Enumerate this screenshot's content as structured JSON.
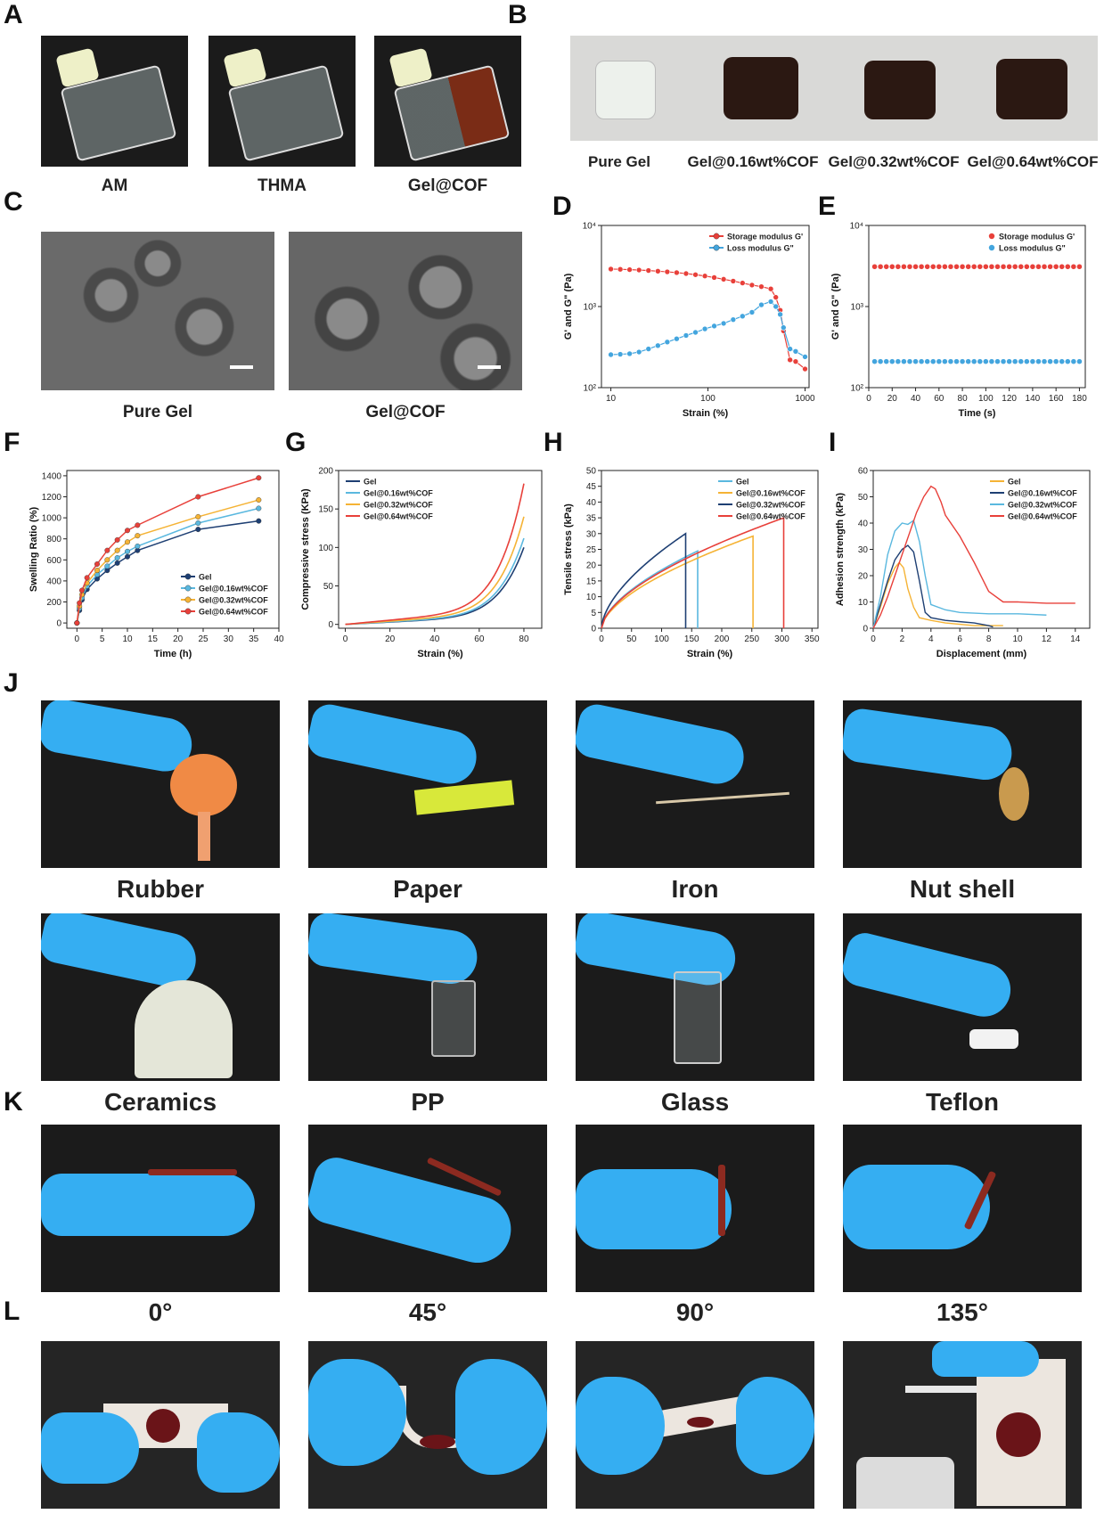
{
  "panels": {
    "A": {
      "label": "A",
      "captions": [
        "AM",
        "THMA",
        "Gel@COF"
      ]
    },
    "B": {
      "label": "B",
      "captions": [
        "Pure Gel",
        "Gel@0.16wt%COF",
        "Gel@0.32wt%COF",
        "Gel@0.64wt%COF"
      ]
    },
    "C": {
      "label": "C",
      "captions": [
        "Pure Gel",
        "Gel@COF"
      ]
    },
    "D": {
      "label": "D"
    },
    "E": {
      "label": "E"
    },
    "F": {
      "label": "F"
    },
    "G": {
      "label": "G"
    },
    "H": {
      "label": "H"
    },
    "I": {
      "label": "I"
    },
    "J": {
      "label": "J",
      "captions": [
        "Rubber",
        "Paper",
        "Iron",
        "Nut shell",
        "Ceramics",
        "PP",
        "Glass",
        "Teflon"
      ]
    },
    "K": {
      "label": "K",
      "captions": [
        "0°",
        "45°",
        "90°",
        "135°"
      ]
    },
    "L": {
      "label": "L"
    }
  },
  "colors": {
    "red": "#e8403a",
    "blue": "#43a5de",
    "yellow": "#f5b335",
    "navy": "#1e3f73",
    "cyan": "#5ab8df"
  },
  "chart_data": [
    {
      "id": "D",
      "type": "line",
      "xlabel": "Strain (%)",
      "ylabel": "G' and G\" (Pa)",
      "xscale": "log",
      "yscale": "log",
      "xlim": [
        8,
        1100
      ],
      "ylim": [
        100,
        10000
      ],
      "xticks": [
        "10",
        "100",
        "1000"
      ],
      "yticks": [
        "10²",
        "10³",
        "10⁴"
      ],
      "legend": "top-right",
      "series": [
        {
          "name": "Storage modulus G'",
          "color": "#e8403a",
          "x": [
            10,
            12.5,
            15.6,
            19.5,
            24.4,
            30.5,
            38.1,
            47.6,
            59.5,
            74.4,
            93,
            116,
            145,
            182,
            227,
            284,
            355,
            444,
            500,
            555,
            600,
            700,
            800,
            1000
          ],
          "y": [
            2900,
            2880,
            2850,
            2820,
            2780,
            2730,
            2680,
            2620,
            2550,
            2470,
            2380,
            2280,
            2170,
            2060,
            1950,
            1840,
            1760,
            1650,
            1300,
            900,
            500,
            220,
            210,
            170
          ]
        },
        {
          "name": "Loss modulus G\"",
          "color": "#43a5de",
          "x": [
            10,
            12.5,
            15.6,
            19.5,
            24.4,
            30.5,
            38.1,
            47.6,
            59.5,
            74.4,
            93,
            116,
            145,
            182,
            227,
            284,
            355,
            444,
            500,
            555,
            600,
            700,
            800,
            1000
          ],
          "y": [
            255,
            258,
            262,
            275,
            300,
            330,
            365,
            400,
            440,
            480,
            530,
            575,
            620,
            690,
            760,
            850,
            1050,
            1150,
            1000,
            800,
            550,
            300,
            280,
            240
          ]
        }
      ]
    },
    {
      "id": "E",
      "type": "scatter",
      "xlabel": "Time (s)",
      "ylabel": "G' and G\" (Pa)",
      "yscale": "log",
      "xlim": [
        0,
        185
      ],
      "ylim": [
        100,
        10000
      ],
      "xticks": [
        "0",
        "20",
        "40",
        "60",
        "80",
        "100",
        "120",
        "140",
        "160",
        "180"
      ],
      "yticks": [
        "10²",
        "10³",
        "10⁴"
      ],
      "legend": "top-right",
      "series": [
        {
          "name": "Storage modulus G'",
          "color": "#e8403a",
          "x_start": 5,
          "x_step": 5,
          "count": 36,
          "y": 3100
        },
        {
          "name": "Loss modulus G\"",
          "color": "#43a5de",
          "x_start": 5,
          "x_step": 5,
          "count": 36,
          "y": 210
        }
      ]
    },
    {
      "id": "F",
      "type": "line",
      "xlabel": "Time (h)",
      "ylabel": "Swelling Ratio (%)",
      "xlim": [
        -2,
        40
      ],
      "ylim": [
        -50,
        1450
      ],
      "xticks": [
        "0",
        "5",
        "10",
        "15",
        "20",
        "25",
        "30",
        "35",
        "40"
      ],
      "yticks": [
        "0",
        "200",
        "400",
        "600",
        "800",
        "1000",
        "1200",
        "1400"
      ],
      "legend": "bottom-right",
      "x": [
        0,
        0.5,
        1,
        2,
        4,
        6,
        8,
        10,
        12,
        24,
        36
      ],
      "series": [
        {
          "name": "Gel",
          "color": "#1e3f73",
          "y": [
            0,
            120,
            220,
            320,
            420,
            500,
            570,
            630,
            690,
            890,
            970
          ]
        },
        {
          "name": "Gel@0.16wt%COF",
          "color": "#5ab8df",
          "y": [
            0,
            140,
            240,
            350,
            460,
            540,
            620,
            680,
            730,
            950,
            1090
          ]
        },
        {
          "name": "Gel@0.32wt%COF",
          "color": "#f5b335",
          "y": [
            0,
            160,
            270,
            380,
            500,
            600,
            690,
            770,
            830,
            1010,
            1170
          ]
        },
        {
          "name": "Gel@0.64wt%COF",
          "color": "#e8403a",
          "y": [
            0,
            190,
            310,
            430,
            560,
            690,
            790,
            880,
            930,
            1200,
            1380
          ]
        }
      ]
    },
    {
      "id": "G",
      "type": "line",
      "xlabel": "Strain (%)",
      "ylabel": "Compressive stress (KPa)",
      "xlim": [
        -3,
        88
      ],
      "ylim": [
        -5,
        200
      ],
      "xticks": [
        "0",
        "20",
        "40",
        "60",
        "80"
      ],
      "yticks": [
        "0",
        "50",
        "100",
        "150",
        "200"
      ],
      "legend": "top-left",
      "series": [
        {
          "name": "Gel",
          "color": "#1e3f73",
          "xmax": 80,
          "ymax": 100
        },
        {
          "name": "Gel@0.16wt%COF",
          "color": "#5ab8df",
          "xmax": 80,
          "ymax": 112
        },
        {
          "name": "Gel@0.32wt%COF",
          "color": "#f5b335",
          "xmax": 80,
          "ymax": 140
        },
        {
          "name": "Gel@0.64wt%COF",
          "color": "#e8403a",
          "xmax": 80,
          "ymax": 183
        }
      ]
    },
    {
      "id": "H",
      "type": "line",
      "xlabel": "Strain (%)",
      "ylabel": "Tensile stress (kPa)",
      "xlim": [
        0,
        360
      ],
      "ylim": [
        0,
        50
      ],
      "xticks": [
        "0",
        "50",
        "100",
        "150",
        "200",
        "250",
        "300",
        "350"
      ],
      "yticks": [
        "0",
        "5",
        "10",
        "15",
        "20",
        "25",
        "30",
        "35",
        "40",
        "45",
        "50"
      ],
      "legend": "top-right",
      "series": [
        {
          "name": "Gel",
          "color": "#5ab8df",
          "xmax": 160,
          "ymax": 24.5
        },
        {
          "name": "Gel@0.16wt%COF",
          "color": "#f5b335",
          "xmax": 252,
          "ymax": 29.2
        },
        {
          "name": "Gel@0.32wt%COF",
          "color": "#1e3f73",
          "xmax": 140,
          "ymax": 30
        },
        {
          "name": "Gel@0.64wt%COF",
          "color": "#e8403a",
          "xmax": 303,
          "ymax": 35
        }
      ]
    },
    {
      "id": "I",
      "type": "line",
      "xlabel": "Displacement (mm)",
      "ylabel": "Adhesion strength (kPa)",
      "xlim": [
        0,
        15
      ],
      "ylim": [
        0,
        60
      ],
      "xticks": [
        "0",
        "2",
        "4",
        "6",
        "8",
        "10",
        "12",
        "14"
      ],
      "yticks": [
        "0",
        "10",
        "20",
        "30",
        "40",
        "50",
        "60"
      ],
      "legend": "top-right",
      "series": [
        {
          "name": "Gel",
          "color": "#f5b335",
          "x": [
            0,
            0.5,
            1,
            1.5,
            1.8,
            2.1,
            2.4,
            2.8,
            3.2,
            4,
            5,
            6,
            7,
            8,
            9
          ],
          "y": [
            0,
            8,
            17,
            23,
            25,
            23,
            15,
            8,
            4,
            3,
            2,
            1.5,
            1,
            1,
            1
          ]
        },
        {
          "name": "Gel@0.16wt%COF",
          "color": "#1e3f73",
          "x": [
            0,
            0.5,
            1,
            1.5,
            2,
            2.4,
            2.8,
            3.2,
            3.6,
            4,
            5,
            6,
            7,
            8,
            8.3
          ],
          "y": [
            0,
            9,
            18,
            26,
            30,
            31.5,
            29,
            18,
            6,
            4,
            3,
            2.5,
            2,
            1,
            0.5
          ]
        },
        {
          "name": "Gel@0.32wt%COF",
          "color": "#5ab8df",
          "x": [
            0,
            0.5,
            1,
            1.5,
            2,
            2.4,
            2.8,
            3.2,
            3.6,
            4,
            5,
            6,
            8,
            10,
            12
          ],
          "y": [
            0,
            12,
            28,
            37,
            40,
            39.5,
            41,
            33,
            20,
            9,
            7,
            6,
            5.5,
            5.5,
            5
          ]
        },
        {
          "name": "Gel@0.64wt%COF",
          "color": "#e8403a",
          "x": [
            0,
            0.5,
            1,
            1.5,
            2,
            2.5,
            3,
            3.5,
            4,
            4.3,
            4.7,
            5,
            6,
            7,
            8,
            9,
            10,
            12,
            14
          ],
          "y": [
            0,
            5,
            12,
            20,
            28,
            36,
            44,
            50,
            54,
            53,
            48,
            43,
            35,
            25,
            14,
            10,
            10,
            9.5,
            9.5
          ]
        }
      ]
    }
  ]
}
